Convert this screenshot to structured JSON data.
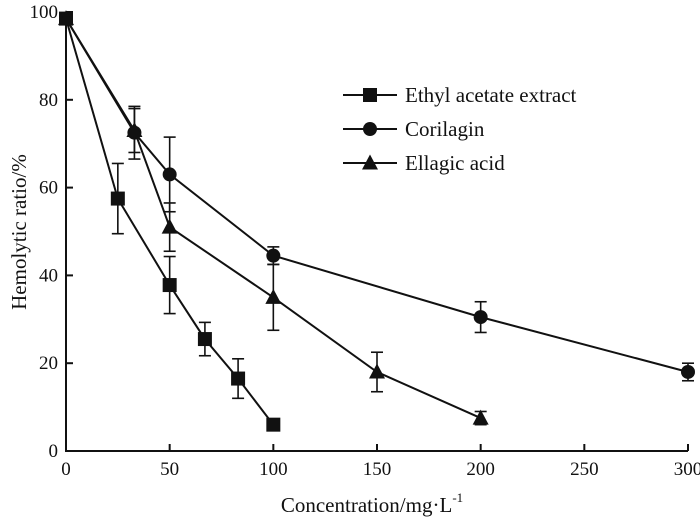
{
  "chart_data": {
    "type": "line",
    "xlabel": "Concentration/mg·L",
    "xlabel_sup": "-1",
    "ylabel": "Hemolytic ratio/%",
    "xlim": [
      0,
      300
    ],
    "ylim": [
      0,
      100
    ],
    "xticks": [
      0,
      50,
      100,
      150,
      200,
      250,
      300
    ],
    "yticks": [
      0,
      20,
      40,
      60,
      80,
      100
    ],
    "grid": false,
    "legend_position": "top-right",
    "series": [
      {
        "name": "Ethyl acetate extract",
        "marker": "square",
        "color": "#111111",
        "points": [
          {
            "x": 0,
            "y": 98.5,
            "err": 0
          },
          {
            "x": 25,
            "y": 57.5,
            "err": 8
          },
          {
            "x": 50,
            "y": 37.8,
            "err": 6.5
          },
          {
            "x": 67,
            "y": 25.5,
            "err": 3.8
          },
          {
            "x": 83,
            "y": 16.5,
            "err": 4.5
          },
          {
            "x": 100,
            "y": 6,
            "err": 0.5
          }
        ]
      },
      {
        "name": "Corilagin",
        "marker": "circle",
        "color": "#111111",
        "points": [
          {
            "x": 0,
            "y": 98.5,
            "err": 0
          },
          {
            "x": 33,
            "y": 72.5,
            "err": 6
          },
          {
            "x": 50,
            "y": 63,
            "err": 8.5
          },
          {
            "x": 100,
            "y": 44.5,
            "err": 2
          },
          {
            "x": 200,
            "y": 30.5,
            "err": 3.5
          },
          {
            "x": 300,
            "y": 18,
            "err": 2
          }
        ]
      },
      {
        "name": "Ellagic acid",
        "marker": "triangle",
        "color": "#111111",
        "points": [
          {
            "x": 0,
            "y": 98.5,
            "err": 0
          },
          {
            "x": 33,
            "y": 73,
            "err": 5
          },
          {
            "x": 50,
            "y": 51,
            "err": 5.5
          },
          {
            "x": 100,
            "y": 35,
            "err": 7.5
          },
          {
            "x": 150,
            "y": 18,
            "err": 4.5
          },
          {
            "x": 200,
            "y": 7.5,
            "err": 1.5
          }
        ]
      }
    ]
  }
}
